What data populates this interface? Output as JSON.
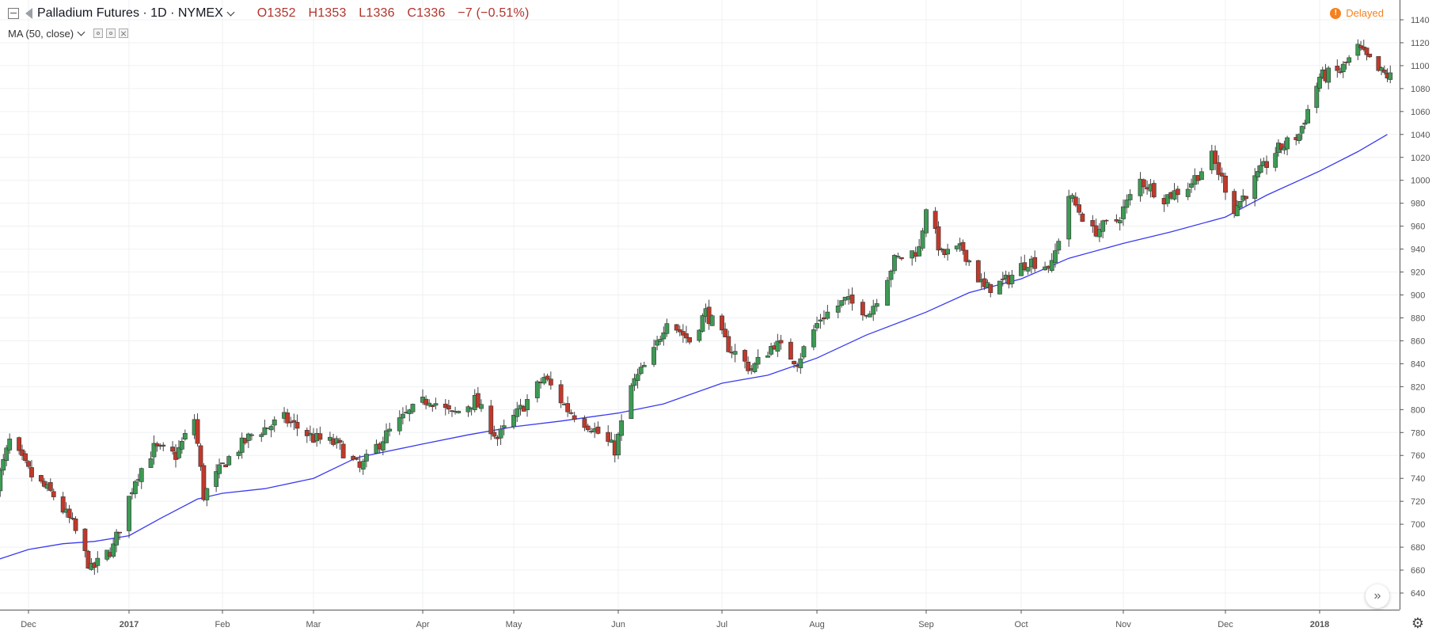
{
  "header": {
    "symbol": "Palladium Futures · 1D · NYMEX",
    "open": "O1352",
    "high": "H1353",
    "low": "L1336",
    "close": "C1336",
    "change": "−7 (−0.51%)"
  },
  "indicator": {
    "label": "MA (50, close)"
  },
  "status": {
    "delayed_label": "Delayed"
  },
  "colors": {
    "up": "#3d9a54",
    "down": "#c0392b",
    "ma": "#3a3af0",
    "grid": "#eef0f3",
    "axis": "#555555"
  },
  "icons": [
    "collapse-icon",
    "flag-icon",
    "chevron-down-icon",
    "eye-icon",
    "settings-icon",
    "close-icon",
    "info-icon",
    "scroll-right-icon",
    "gear-icon"
  ],
  "chart_data": {
    "type": "candlestick",
    "title": "Palladium Futures · 1D · NYMEX",
    "x_tick_labels": [
      "Dec",
      "2017",
      "Feb",
      "Mar",
      "Apr",
      "May",
      "Jun",
      "Jul",
      "Aug",
      "Sep",
      "Oct",
      "Nov",
      "Dec",
      "2018"
    ],
    "x_tick_dates": [
      "2016-12-01",
      "2017-01-02",
      "2017-02-01",
      "2017-03-01",
      "2017-04-03",
      "2017-05-01",
      "2017-06-01",
      "2017-07-03",
      "2017-08-01",
      "2017-09-01",
      "2017-10-02",
      "2017-11-01",
      "2017-12-01",
      "2018-01-02"
    ],
    "y_ticks": [
      640,
      660,
      680,
      700,
      720,
      740,
      760,
      780,
      800,
      820,
      840,
      860,
      880,
      900,
      920,
      940,
      960,
      980,
      1000,
      1020,
      1040,
      1060,
      1080,
      1100,
      1120,
      1140
    ],
    "ylim": [
      630,
      1145
    ],
    "grid": true,
    "series": [
      {
        "name": "MA (50, close)",
        "type": "line",
        "points": [
          [
            "2016-11-21",
            669
          ],
          [
            "2016-12-01",
            678
          ],
          [
            "2016-12-12",
            683
          ],
          [
            "2016-12-22",
            685
          ],
          [
            "2017-01-02",
            690
          ],
          [
            "2017-01-12",
            705
          ],
          [
            "2017-01-24",
            722
          ],
          [
            "2017-02-01",
            727
          ],
          [
            "2017-02-14",
            731
          ],
          [
            "2017-03-01",
            740
          ],
          [
            "2017-03-14",
            758
          ],
          [
            "2017-04-03",
            770
          ],
          [
            "2017-04-17",
            778
          ],
          [
            "2017-05-01",
            785
          ],
          [
            "2017-05-15",
            790
          ],
          [
            "2017-06-01",
            797
          ],
          [
            "2017-06-15",
            805
          ],
          [
            "2017-07-03",
            823
          ],
          [
            "2017-07-17",
            830
          ],
          [
            "2017-08-01",
            845
          ],
          [
            "2017-08-15",
            865
          ],
          [
            "2017-09-01",
            885
          ],
          [
            "2017-09-15",
            902
          ],
          [
            "2017-10-02",
            914
          ],
          [
            "2017-10-16",
            932
          ],
          [
            "2017-11-01",
            945
          ],
          [
            "2017-11-15",
            955
          ],
          [
            "2017-12-01",
            968
          ],
          [
            "2017-12-15",
            987
          ],
          [
            "2018-01-02",
            1008
          ],
          [
            "2018-01-15",
            1025
          ],
          [
            "2018-01-25",
            1040
          ]
        ]
      },
      {
        "name": "Palladium Futures",
        "type": "candlestick",
        "anchors": [
          [
            "2016-11-21",
            735
          ],
          [
            "2016-11-25",
            772
          ],
          [
            "2016-12-02",
            742
          ],
          [
            "2016-12-09",
            725
          ],
          [
            "2016-12-15",
            700
          ],
          [
            "2016-12-21",
            660
          ],
          [
            "2016-12-28",
            680
          ],
          [
            "2017-01-04",
            740
          ],
          [
            "2017-01-10",
            766
          ],
          [
            "2017-01-17",
            760
          ],
          [
            "2017-01-23",
            792
          ],
          [
            "2017-01-26",
            725
          ],
          [
            "2017-02-02",
            755
          ],
          [
            "2017-02-10",
            778
          ],
          [
            "2017-02-20",
            792
          ],
          [
            "2017-03-01",
            775
          ],
          [
            "2017-03-08",
            770
          ],
          [
            "2017-03-15",
            748
          ],
          [
            "2017-03-22",
            775
          ],
          [
            "2017-03-29",
            795
          ],
          [
            "2017-04-05",
            810
          ],
          [
            "2017-04-12",
            795
          ],
          [
            "2017-04-19",
            808
          ],
          [
            "2017-04-26",
            775
          ],
          [
            "2017-05-03",
            800
          ],
          [
            "2017-05-10",
            828
          ],
          [
            "2017-05-17",
            800
          ],
          [
            "2017-05-24",
            785
          ],
          [
            "2017-05-31",
            765
          ],
          [
            "2017-06-05",
            820
          ],
          [
            "2017-06-12",
            850
          ],
          [
            "2017-06-16",
            880
          ],
          [
            "2017-06-23",
            860
          ],
          [
            "2017-06-28",
            885
          ],
          [
            "2017-07-05",
            855
          ],
          [
            "2017-07-12",
            835
          ],
          [
            "2017-07-19",
            858
          ],
          [
            "2017-07-26",
            842
          ],
          [
            "2017-08-02",
            880
          ],
          [
            "2017-08-09",
            895
          ],
          [
            "2017-08-16",
            885
          ],
          [
            "2017-08-23",
            930
          ],
          [
            "2017-08-30",
            940
          ],
          [
            "2017-09-01",
            978
          ],
          [
            "2017-09-06",
            935
          ],
          [
            "2017-09-13",
            940
          ],
          [
            "2017-09-20",
            905
          ],
          [
            "2017-09-27",
            912
          ],
          [
            "2017-10-04",
            930
          ],
          [
            "2017-10-11",
            925
          ],
          [
            "2017-10-16",
            987
          ],
          [
            "2017-10-23",
            955
          ],
          [
            "2017-10-30",
            965
          ],
          [
            "2017-11-06",
            1000
          ],
          [
            "2017-11-13",
            985
          ],
          [
            "2017-11-20",
            995
          ],
          [
            "2017-11-27",
            1020
          ],
          [
            "2017-12-04",
            975
          ],
          [
            "2017-12-11",
            1000
          ],
          [
            "2017-12-18",
            1025
          ],
          [
            "2017-12-26",
            1040
          ],
          [
            "2018-01-02",
            1090
          ],
          [
            "2018-01-09",
            1095
          ],
          [
            "2018-01-15",
            1115
          ],
          [
            "2018-01-22",
            1095
          ],
          [
            "2018-01-26",
            1090
          ]
        ]
      }
    ]
  }
}
